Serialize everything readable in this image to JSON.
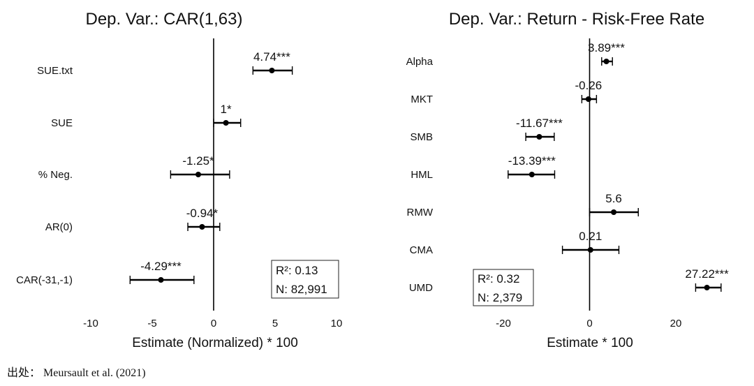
{
  "chart_data": [
    {
      "type": "scatter",
      "title": "Dep. Var.: CAR(1,63)",
      "xlabel": "Estimate (Normalized) * 100",
      "xlim": [
        -10,
        10
      ],
      "xticks": [
        "-10",
        "-5",
        "0",
        "5",
        "10"
      ],
      "grid": false,
      "categories": [
        "SUE.txt",
        "SUE",
        "% Neg.",
        "AR(0)",
        "CAR(-31,-1)"
      ],
      "estimates": [
        4.74,
        1.0,
        -1.25,
        -0.94,
        -4.29
      ],
      "ci_low": [
        3.2,
        0.0,
        -3.5,
        -2.1,
        -6.8
      ],
      "ci_high": [
        6.4,
        2.2,
        1.3,
        0.5,
        -1.6
      ],
      "labels": [
        "4.74***",
        "1*",
        "-1.25*",
        "-0.94*",
        "-4.29***"
      ],
      "stats": [
        "R²: 0.13",
        "N: 82,991"
      ]
    },
    {
      "type": "scatter",
      "title": "Dep. Var.: Return - Risk-Free Rate",
      "xlabel": "Estimate * 100",
      "xlim": [
        -20,
        30
      ],
      "xticks": [
        "-20",
        "0",
        "20"
      ],
      "grid": false,
      "categories": [
        "Alpha",
        "MKT",
        "SMB",
        "HML",
        "RMW",
        "CMA",
        "UMD"
      ],
      "estimates": [
        3.89,
        -0.26,
        -11.67,
        -13.39,
        5.6,
        0.21,
        27.22
      ],
      "ci_low": [
        2.8,
        -1.8,
        -14.8,
        -18.9,
        0.0,
        -6.3,
        24.6
      ],
      "ci_high": [
        5.3,
        1.6,
        -8.2,
        -8.1,
        11.3,
        6.8,
        30.5
      ],
      "labels": [
        "3.89***",
        "-0.26",
        "-11.67***",
        "-13.39***",
        "5.6",
        "0.21",
        "27.22***"
      ],
      "stats": [
        "R²: 0.32",
        "N: 2,379"
      ]
    }
  ],
  "source": "出处： Meursault et al. (2021)"
}
